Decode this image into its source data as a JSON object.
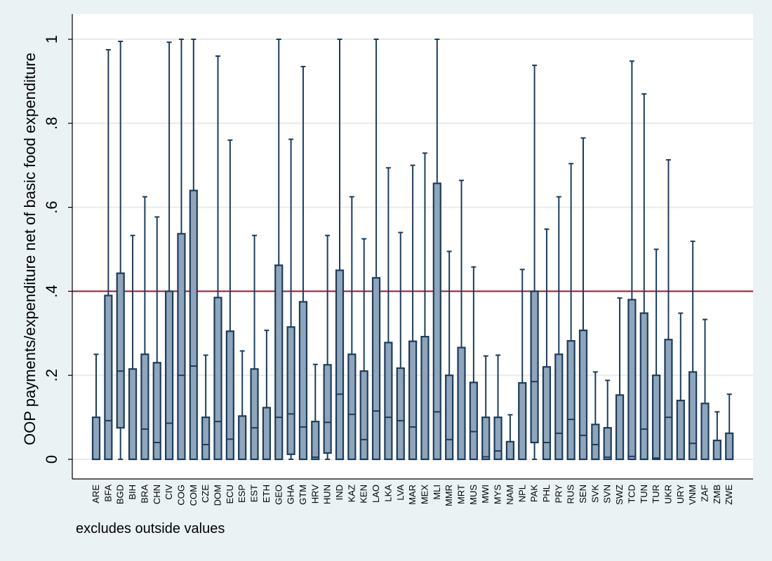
{
  "chart_data": {
    "type": "box",
    "ylabel": "OOP payments/expenditure net of basic food expenditure",
    "note": "excludes outside values",
    "ylim": [
      0,
      1
    ],
    "yticks": [
      0,
      0.2,
      0.4,
      0.6,
      0.8,
      1
    ],
    "ytick_labels": [
      "0",
      ".2",
      ".4",
      ".6",
      ".8",
      "1"
    ],
    "reference_line": {
      "y": 0.4,
      "color": "#a0182e"
    },
    "box_fill": "#8fa5bb",
    "box_stroke": "#1d3c5c",
    "grid": true,
    "categories": [
      "ARE",
      "BFA",
      "BGD",
      "BIH",
      "BRA",
      "CHN",
      "CIV",
      "COG",
      "COM",
      "CZE",
      "DOM",
      "ECU",
      "ESP",
      "EST",
      "ETH",
      "GEO",
      "GHA",
      "GTM",
      "HRV",
      "HUN",
      "IND",
      "KAZ",
      "KEN",
      "LAO",
      "LKA",
      "LVA",
      "MAR",
      "MEX",
      "MLI",
      "MMR",
      "MRT",
      "MUS",
      "MWI",
      "MYS",
      "NAM",
      "NPL",
      "PAK",
      "PHL",
      "PRY",
      "RUS",
      "SEN",
      "SVK",
      "SVN",
      "SWZ",
      "TCD",
      "TUN",
      "TUR",
      "UKR",
      "URY",
      "VNM",
      "ZAF",
      "ZMB",
      "ZWE"
    ],
    "boxes": [
      {
        "low": 0,
        "q1": 0,
        "median": 0,
        "q3": 0.1,
        "high": 0.25
      },
      {
        "low": 0,
        "q1": 0,
        "median": 0.092,
        "q3": 0.39,
        "high": 0.975
      },
      {
        "low": 0,
        "q1": 0.075,
        "median": 0.21,
        "q3": 0.443,
        "high": 0.995
      },
      {
        "low": 0,
        "q1": 0,
        "median": 0,
        "q3": 0.215,
        "high": 0.533
      },
      {
        "low": 0,
        "q1": 0,
        "median": 0.072,
        "q3": 0.25,
        "high": 0.625
      },
      {
        "low": 0,
        "q1": 0,
        "median": 0.04,
        "q3": 0.23,
        "high": 0.577
      },
      {
        "low": 0,
        "q1": 0,
        "median": 0.086,
        "q3": 0.4,
        "high": 0.993
      },
      {
        "low": 0,
        "q1": 0,
        "median": 0.2,
        "q3": 0.537,
        "high": 1
      },
      {
        "low": 0,
        "q1": 0,
        "median": 0.222,
        "q3": 0.64,
        "high": 1
      },
      {
        "low": 0,
        "q1": 0,
        "median": 0.035,
        "q3": 0.1,
        "high": 0.248
      },
      {
        "low": 0,
        "q1": 0,
        "median": 0.09,
        "q3": 0.385,
        "high": 0.96
      },
      {
        "low": 0,
        "q1": 0,
        "median": 0.048,
        "q3": 0.305,
        "high": 0.76
      },
      {
        "low": 0,
        "q1": 0,
        "median": 0,
        "q3": 0.103,
        "high": 0.258
      },
      {
        "low": 0,
        "q1": 0,
        "median": 0.075,
        "q3": 0.215,
        "high": 0.533
      },
      {
        "low": 0,
        "q1": 0,
        "median": 0,
        "q3": 0.123,
        "high": 0.307
      },
      {
        "low": 0,
        "q1": 0,
        "median": 0.1,
        "q3": 0.462,
        "high": 1
      },
      {
        "low": 0,
        "q1": 0.012,
        "median": 0.108,
        "q3": 0.315,
        "high": 0.762
      },
      {
        "low": 0,
        "q1": 0,
        "median": 0.077,
        "q3": 0.375,
        "high": 0.935
      },
      {
        "low": 0,
        "q1": 0,
        "median": 0.005,
        "q3": 0.09,
        "high": 0.226
      },
      {
        "low": 0,
        "q1": 0.015,
        "median": 0.088,
        "q3": 0.225,
        "high": 0.533
      },
      {
        "low": 0,
        "q1": 0,
        "median": 0.155,
        "q3": 0.45,
        "high": 1
      },
      {
        "low": 0,
        "q1": 0,
        "median": 0.107,
        "q3": 0.25,
        "high": 0.625
      },
      {
        "low": 0,
        "q1": 0,
        "median": 0.047,
        "q3": 0.21,
        "high": 0.525
      },
      {
        "low": 0,
        "q1": 0,
        "median": 0.115,
        "q3": 0.432,
        "high": 1
      },
      {
        "low": 0,
        "q1": 0,
        "median": 0.1,
        "q3": 0.278,
        "high": 0.694
      },
      {
        "low": 0,
        "q1": 0,
        "median": 0.092,
        "q3": 0.217,
        "high": 0.54
      },
      {
        "low": 0,
        "q1": 0,
        "median": 0.077,
        "q3": 0.281,
        "high": 0.7
      },
      {
        "low": 0,
        "q1": 0,
        "median": 0,
        "q3": 0.292,
        "high": 0.729
      },
      {
        "low": 0,
        "q1": 0,
        "median": 0.113,
        "q3": 0.657,
        "high": 1
      },
      {
        "low": 0,
        "q1": 0,
        "median": 0.047,
        "q3": 0.2,
        "high": 0.495
      },
      {
        "low": 0,
        "q1": 0,
        "median": 0,
        "q3": 0.266,
        "high": 0.664
      },
      {
        "low": 0,
        "q1": 0,
        "median": 0.066,
        "q3": 0.183,
        "high": 0.458
      },
      {
        "low": 0,
        "q1": 0,
        "median": 0.006,
        "q3": 0.1,
        "high": 0.246
      },
      {
        "low": 0,
        "q1": 0,
        "median": 0.02,
        "q3": 0.1,
        "high": 0.248
      },
      {
        "low": 0,
        "q1": 0,
        "median": 0,
        "q3": 0.042,
        "high": 0.106
      },
      {
        "low": 0,
        "q1": 0,
        "median": 0,
        "q3": 0.182,
        "high": 0.452
      },
      {
        "low": 0,
        "q1": 0.04,
        "median": 0.185,
        "q3": 0.4,
        "high": 0.938
      },
      {
        "low": 0,
        "q1": 0,
        "median": 0.04,
        "q3": 0.22,
        "high": 0.548
      },
      {
        "low": 0,
        "q1": 0,
        "median": 0.062,
        "q3": 0.25,
        "high": 0.625
      },
      {
        "low": 0,
        "q1": 0,
        "median": 0.095,
        "q3": 0.282,
        "high": 0.704
      },
      {
        "low": 0,
        "q1": 0,
        "median": 0.057,
        "q3": 0.307,
        "high": 0.765
      },
      {
        "low": 0,
        "q1": 0,
        "median": 0.035,
        "q3": 0.083,
        "high": 0.208
      },
      {
        "low": 0,
        "q1": 0,
        "median": 0.005,
        "q3": 0.075,
        "high": 0.188
      },
      {
        "low": 0,
        "q1": 0,
        "median": 0,
        "q3": 0.153,
        "high": 0.384
      },
      {
        "low": 0,
        "q1": 0,
        "median": 0.007,
        "q3": 0.38,
        "high": 0.948
      },
      {
        "low": 0,
        "q1": 0,
        "median": 0.072,
        "q3": 0.348,
        "high": 0.87
      },
      {
        "low": 0,
        "q1": 0,
        "median": 0.003,
        "q3": 0.2,
        "high": 0.5
      },
      {
        "low": 0,
        "q1": 0,
        "median": 0.1,
        "q3": 0.285,
        "high": 0.713
      },
      {
        "low": 0,
        "q1": 0,
        "median": 0,
        "q3": 0.14,
        "high": 0.348
      },
      {
        "low": 0,
        "q1": 0,
        "median": 0.038,
        "q3": 0.208,
        "high": 0.519
      },
      {
        "low": 0,
        "q1": 0,
        "median": 0,
        "q3": 0.133,
        "high": 0.333
      },
      {
        "low": 0,
        "q1": 0,
        "median": 0,
        "q3": 0.045,
        "high": 0.113
      },
      {
        "low": 0,
        "q1": 0,
        "median": 0,
        "q3": 0.062,
        "high": 0.155
      }
    ]
  }
}
